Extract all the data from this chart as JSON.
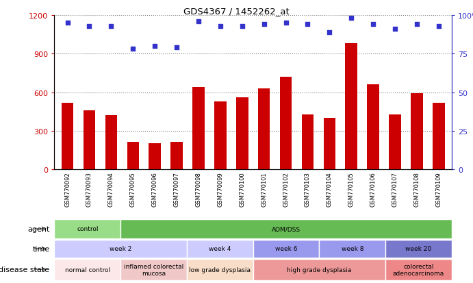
{
  "title": "GDS4367 / 1452262_at",
  "samples": [
    "GSM770092",
    "GSM770093",
    "GSM770094",
    "GSM770095",
    "GSM770096",
    "GSM770097",
    "GSM770098",
    "GSM770099",
    "GSM770100",
    "GSM770101",
    "GSM770102",
    "GSM770103",
    "GSM770104",
    "GSM770105",
    "GSM770106",
    "GSM770107",
    "GSM770108",
    "GSM770109"
  ],
  "counts": [
    520,
    460,
    420,
    215,
    205,
    215,
    640,
    530,
    560,
    630,
    720,
    430,
    400,
    980,
    660,
    430,
    590,
    520
  ],
  "percentiles": [
    95,
    93,
    93,
    78,
    80,
    79,
    96,
    93,
    93,
    94,
    95,
    94,
    89,
    98,
    94,
    91,
    94,
    93
  ],
  "ylim_left": [
    0,
    1200
  ],
  "ylim_right": [
    0,
    100
  ],
  "yticks_left": [
    0,
    300,
    600,
    900,
    1200
  ],
  "yticks_right": [
    0,
    25,
    50,
    75,
    100
  ],
  "ytick_labels_right": [
    "0",
    "25",
    "50",
    "75",
    "100%"
  ],
  "bar_color": "#cc0000",
  "dot_color": "#3333cc",
  "agent_row": {
    "label": "agent",
    "segments": [
      {
        "text": "control",
        "start": 0,
        "end": 3,
        "color": "#99dd88"
      },
      {
        "text": "AOM/DSS",
        "start": 3,
        "end": 18,
        "color": "#66bb55"
      }
    ]
  },
  "time_row": {
    "label": "time",
    "segments": [
      {
        "text": "week 2",
        "start": 0,
        "end": 6,
        "color": "#ccccff"
      },
      {
        "text": "week 4",
        "start": 6,
        "end": 9,
        "color": "#ccccff"
      },
      {
        "text": "week 6",
        "start": 9,
        "end": 12,
        "color": "#9999ee"
      },
      {
        "text": "week 8",
        "start": 12,
        "end": 15,
        "color": "#9999ee"
      },
      {
        "text": "week 20",
        "start": 15,
        "end": 18,
        "color": "#7777cc"
      }
    ]
  },
  "disease_row": {
    "label": "disease state",
    "segments": [
      {
        "text": "normal control",
        "start": 0,
        "end": 3,
        "color": "#fce8e8"
      },
      {
        "text": "inflamed colorectal\nmucosa",
        "start": 3,
        "end": 6,
        "color": "#f0c8c8"
      },
      {
        "text": "low grade dysplasia",
        "start": 6,
        "end": 9,
        "color": "#f8ddc8"
      },
      {
        "text": "high grade dysplasia",
        "start": 9,
        "end": 15,
        "color": "#ee9999"
      },
      {
        "text": "colorectal\nadenocarcinoma",
        "start": 15,
        "end": 18,
        "color": "#ee8888"
      }
    ]
  },
  "legend_count_color": "#cc0000",
  "legend_dot_color": "#3333cc",
  "background_color": "#ffffff",
  "plot_bg_color": "#ffffff"
}
